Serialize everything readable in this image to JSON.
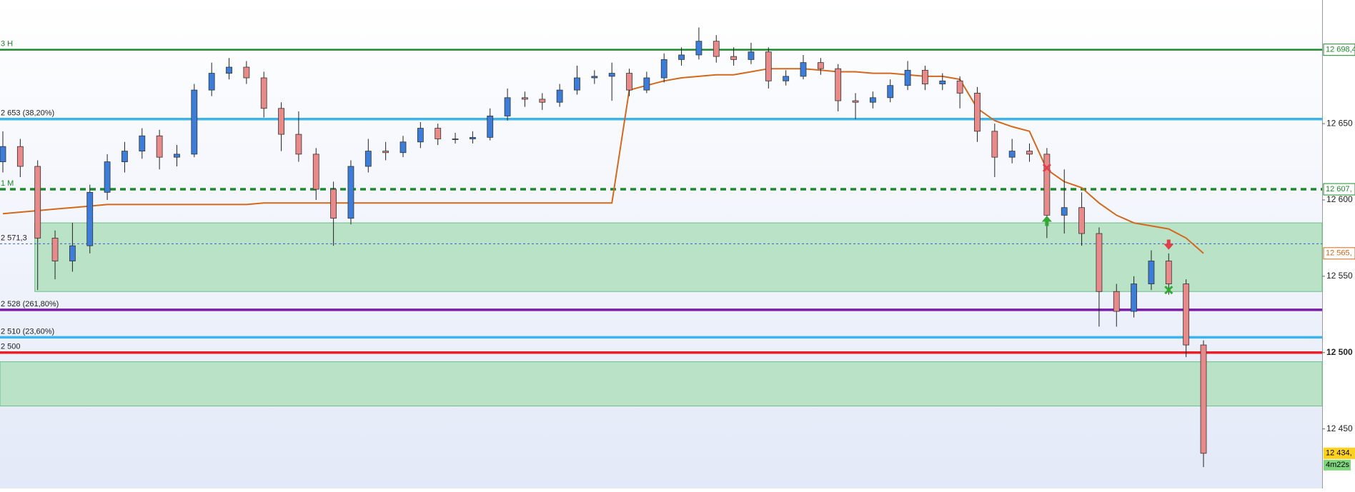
{
  "chart_data": {
    "type": "candlestick",
    "ylim": [
      12411,
      12731
    ],
    "yticks": [
      {
        "value": 12650,
        "label": "12 650"
      },
      {
        "value": 12600,
        "label": "12 600"
      },
      {
        "value": 12550,
        "label": "12 550"
      },
      {
        "value": 12500,
        "label": "12 500"
      },
      {
        "value": 12450,
        "label": "12 450"
      }
    ],
    "up_color": "#3b7dd8",
    "down_color": "#e98a8a",
    "candles": [
      [
        12625,
        12645,
        12618,
        12635
      ],
      [
        12635,
        12640,
        12615,
        12622
      ],
      [
        12622,
        12626,
        12541,
        12575
      ],
      [
        12575,
        12580,
        12548,
        12560
      ],
      [
        12560,
        12585,
        12553,
        12570
      ],
      [
        12570,
        12610,
        12565,
        12605
      ],
      [
        12605,
        12630,
        12600,
        12625
      ],
      [
        12625,
        12638,
        12618,
        12632
      ],
      [
        12632,
        12647,
        12627,
        12642
      ],
      [
        12642,
        12646,
        12620,
        12628
      ],
      [
        12628,
        12636,
        12622,
        12630
      ],
      [
        12630,
        12676,
        12628,
        12672
      ],
      [
        12672,
        12690,
        12668,
        12683
      ],
      [
        12683,
        12693,
        12679,
        12687
      ],
      [
        12687,
        12691,
        12676,
        12680
      ],
      [
        12680,
        12684,
        12654,
        12660
      ],
      [
        12660,
        12664,
        12632,
        12643
      ],
      [
        12643,
        12658,
        12625,
        12630
      ],
      [
        12630,
        12634,
        12600,
        12607
      ],
      [
        12607,
        12612,
        12570,
        12588
      ],
      [
        12588,
        12626,
        12584,
        12622
      ],
      [
        12622,
        12640,
        12618,
        12632
      ],
      [
        12632,
        12638,
        12626,
        12631
      ],
      [
        12631,
        12642,
        12628,
        12638
      ],
      [
        12638,
        12651,
        12634,
        12647
      ],
      [
        12647,
        12650,
        12636,
        12640
      ],
      [
        12640,
        12644,
        12637,
        12640
      ],
      [
        12640,
        12645,
        12637,
        12641
      ],
      [
        12641,
        12660,
        12639,
        12655
      ],
      [
        12655,
        12673,
        12652,
        12667
      ],
      [
        12667,
        12671,
        12661,
        12666
      ],
      [
        12666,
        12670,
        12659,
        12664
      ],
      [
        12664,
        12676,
        12661,
        12672
      ],
      [
        12672,
        12688,
        12669,
        12680
      ],
      [
        12680,
        12685,
        12676,
        12681
      ],
      [
        12681,
        12690,
        12665,
        12683
      ],
      [
        12683,
        12686,
        12668,
        12672
      ],
      [
        12672,
        12684,
        12670,
        12680
      ],
      [
        12680,
        12696,
        12677,
        12692
      ],
      [
        12692,
        12700,
        12688,
        12695
      ],
      [
        12695,
        12713,
        12692,
        12704
      ],
      [
        12704,
        12708,
        12690,
        12694
      ],
      [
        12694,
        12700,
        12688,
        12692
      ],
      [
        12692,
        12703,
        12689,
        12697
      ],
      [
        12697,
        12700,
        12673,
        12678
      ],
      [
        12678,
        12685,
        12675,
        12681
      ],
      [
        12681,
        12695,
        12679,
        12690
      ],
      [
        12690,
        12693,
        12682,
        12686
      ],
      [
        12686,
        12689,
        12658,
        12665
      ],
      [
        12665,
        12670,
        12653,
        12664
      ],
      [
        12664,
        12671,
        12660,
        12667
      ],
      [
        12667,
        12679,
        12664,
        12675
      ],
      [
        12675,
        12691,
        12672,
        12685
      ],
      [
        12685,
        12688,
        12672,
        12676
      ],
      [
        12676,
        12683,
        12672,
        12678
      ],
      [
        12678,
        12681,
        12660,
        12670
      ],
      [
        12670,
        12674,
        12638,
        12645
      ],
      [
        12645,
        12650,
        12615,
        12628
      ],
      [
        12628,
        12640,
        12624,
        12632
      ],
      [
        12632,
        12637,
        12625,
        12630
      ],
      [
        12630,
        12634,
        12575,
        12590
      ],
      [
        12590,
        12620,
        12578,
        12595
      ],
      [
        12595,
        12605,
        12570,
        12578
      ],
      [
        12578,
        12582,
        12517,
        12540
      ],
      [
        12540,
        12545,
        12517,
        12527
      ],
      [
        12527,
        12550,
        12523,
        12545
      ],
      [
        12545,
        12567,
        12541,
        12560
      ],
      [
        12560,
        12565,
        12538,
        12545
      ],
      [
        12545,
        12548,
        12497,
        12505
      ],
      [
        12505,
        12508,
        12425,
        12434
      ]
    ],
    "ma": {
      "color": "#d2691e",
      "values": [
        12591,
        12592,
        12593,
        12594,
        12595,
        12596,
        12597,
        12597,
        12597,
        12597,
        12597,
        12597,
        12597,
        12597,
        12597,
        12598,
        12598,
        12598,
        12598,
        12598,
        12598,
        12598,
        12598,
        12598,
        12598,
        12598,
        12598,
        12598,
        12598,
        12598,
        12598,
        12598,
        12598,
        12598,
        12598,
        12598,
        12672,
        12675,
        12678,
        12680,
        12681,
        12682,
        12682,
        12684,
        12686,
        12686,
        12686,
        12685,
        12684,
        12684,
        12683,
        12683,
        12682,
        12681,
        12681,
        12679,
        12660,
        12652,
        12648,
        12645,
        12620,
        12612,
        12608,
        12598,
        12590,
        12585,
        12583,
        12581,
        12575,
        12565
      ],
      "tag": "12 565,"
    },
    "zones": [
      {
        "top": 12585,
        "bottom": 12540,
        "start": 2,
        "color": "#b9e2c6"
      },
      {
        "top": 12494,
        "bottom": 12465,
        "start": 0,
        "color": "#b9e2c6"
      }
    ],
    "levels": [
      {
        "value": 12698.4,
        "label": "3 H",
        "color": "#1e8a2e",
        "width": 2.5,
        "dash": false,
        "tag": "12 698,4"
      },
      {
        "value": 12653,
        "label": "2 653 (38,20%)",
        "color": "#3cb4ec",
        "width": 3.5,
        "dash": false
      },
      {
        "value": 12607,
        "label": "1 M",
        "color": "#1e8a2e",
        "width": 3.5,
        "dash": true,
        "tag": "12 607,"
      },
      {
        "value": 12571.3,
        "label": "2 571,3",
        "color": "#3a5fd0",
        "width": 1,
        "dash": true
      },
      {
        "value": 12528,
        "label": "2 528 (261,80%)",
        "color": "#7a1ea8",
        "width": 3.5,
        "dash": false
      },
      {
        "value": 12510,
        "label": "2 510 (23,60%)",
        "color": "#3cb4ec",
        "width": 3.5,
        "dash": false
      },
      {
        "value": 12500,
        "label": "2 500",
        "color": "#e8202a",
        "width": 3.5,
        "dash": false
      }
    ],
    "signals": [
      {
        "kind": "cross",
        "color": "#e0404a",
        "index": 60,
        "value": 12621
      },
      {
        "kind": "arrow-up",
        "color": "#33a833",
        "index": 60,
        "value": 12586
      },
      {
        "kind": "arrow-down",
        "color": "#e0404a",
        "index": 67,
        "value": 12571
      },
      {
        "kind": "cross",
        "color": "#33a833",
        "index": 67,
        "value": 12541
      }
    ],
    "last_price": {
      "value": 12434,
      "tag": "12 434,",
      "color": "#ffd21f",
      "timer": "4m22s",
      "timer_color": "#7fd67f"
    }
  }
}
